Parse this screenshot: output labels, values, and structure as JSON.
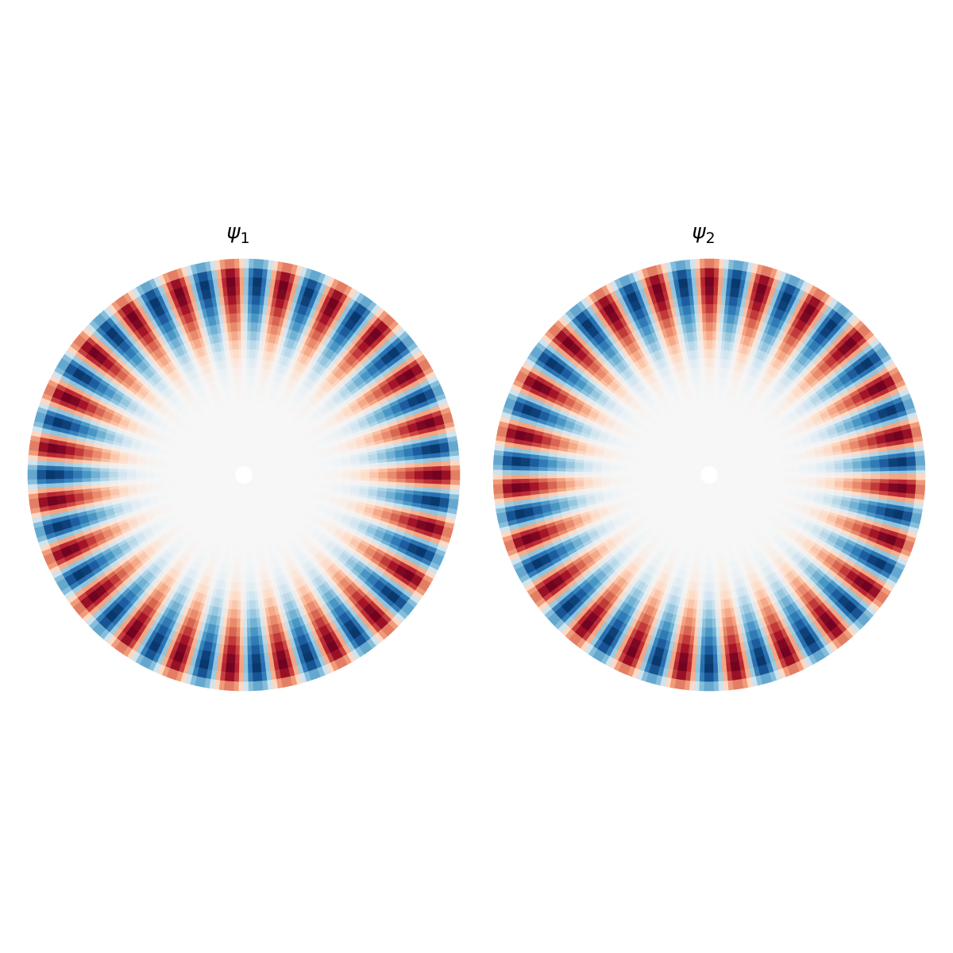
{
  "panels": [
    {
      "title": "ψ",
      "subscript": "1"
    },
    {
      "title": "ψ",
      "subscript": "2"
    }
  ]
}
